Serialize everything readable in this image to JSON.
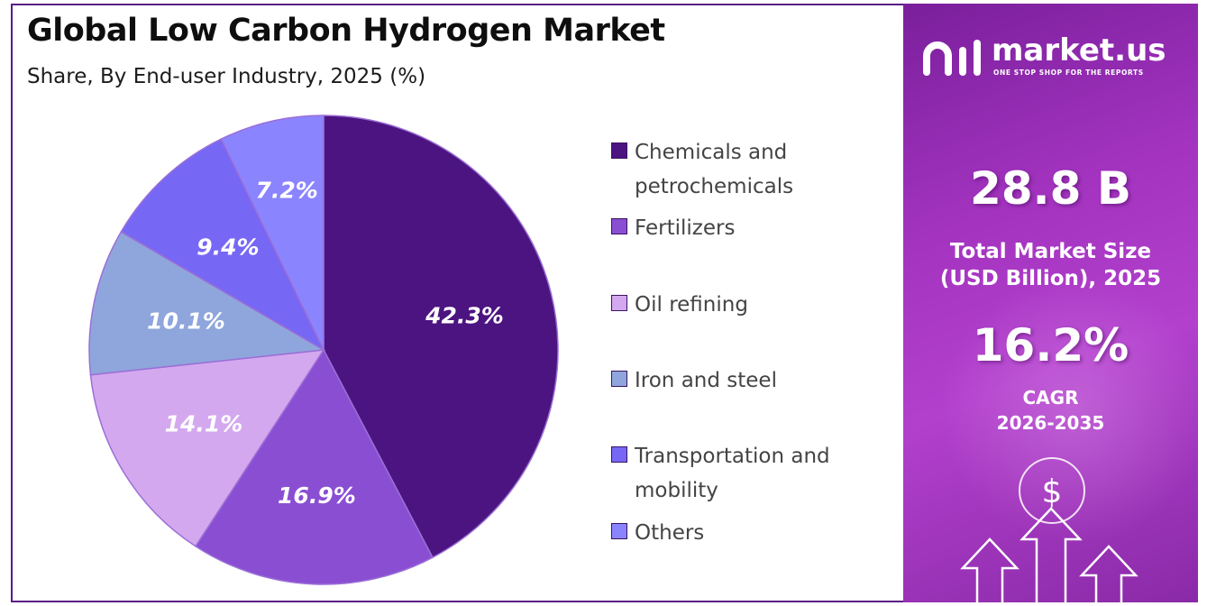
{
  "title": "Global Low Carbon Hydrogen Market",
  "subtitle": "Share, By End-user Industry, 2025 (%)",
  "chart_data": {
    "type": "pie",
    "title": "Global Low Carbon Hydrogen Market",
    "subtitle": "Share, By End-user Industry, 2025 (%)",
    "categories": [
      "Chemicals and petrochemicals",
      "Fertilizers",
      "Oil refining",
      "Iron and steel",
      "Transportation and mobility",
      "Others"
    ],
    "values": [
      42.3,
      16.9,
      14.1,
      10.1,
      9.4,
      7.2
    ],
    "data_labels": [
      "42.3%",
      "16.9%",
      "14.1%",
      "10.1%",
      "9.4%",
      "7.2%"
    ],
    "colors": [
      "#4c1481",
      "#8a4ed3",
      "#d4a8ee",
      "#8fa6dc",
      "#7767f5",
      "#8b84ff"
    ],
    "legend_position": "right"
  },
  "legend": [
    {
      "label": "Chemicals and petrochemicals",
      "color": "#4c1481"
    },
    {
      "label": "Fertilizers",
      "color": "#8a4ed3"
    },
    {
      "label": "Oil refining",
      "color": "#d4a8ee"
    },
    {
      "label": "Iron and steel",
      "color": "#8fa6dc"
    },
    {
      "label": "Transportation and mobility",
      "color": "#7767f5"
    },
    {
      "label": "Others",
      "color": "#8b84ff"
    }
  ],
  "panel": {
    "brand_name": "market.us",
    "brand_tagline": "ONE STOP SHOP FOR THE REPORTS",
    "market_size_value": "28.8 B",
    "market_size_label_line1": "Total Market Size",
    "market_size_label_line2": "(USD Billion), 2025",
    "cagr_value": "16.2%",
    "cagr_label_line1": "CAGR",
    "cagr_label_line2": "2026-2035",
    "currency_symbol": "$"
  }
}
